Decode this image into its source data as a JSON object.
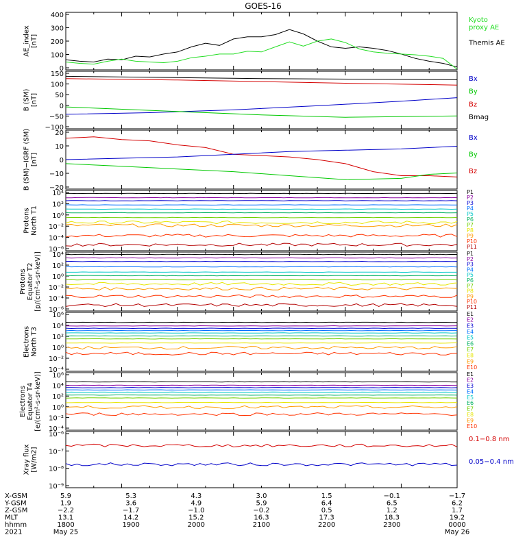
{
  "title": "GOES-16",
  "colors": {
    "black": "#000000",
    "red": "#d40000",
    "green": "#00c800",
    "blue": "#0000c8",
    "kyoto": "#22dd22",
    "ch": [
      "#000000",
      "#8a00a0",
      "#0000d0",
      "#0070ff",
      "#00c8c8",
      "#00b060",
      "#70d000",
      "#e6e600",
      "#ff9900",
      "#ff3300",
      "#b40000"
    ]
  },
  "chart_data": [
    {
      "id": "ae",
      "type": "line",
      "ylabel": "AE_index\n[nT]",
      "ylim": [
        0,
        400
      ],
      "yticks": [
        "400",
        "300",
        "200",
        "100",
        "0"
      ],
      "legend": [
        {
          "label": "Kyoto\nproxy AE",
          "color": "#22dd22"
        },
        {
          "label": "Themis AE",
          "color": "#000000"
        }
      ],
      "series": [
        {
          "name": "Themis AE",
          "color": "#000000",
          "points": [
            [
              0,
              70
            ],
            [
              0.5,
              60
            ],
            [
              1,
              55
            ],
            [
              1.5,
              75
            ],
            [
              2,
              70
            ],
            [
              2.5,
              95
            ],
            [
              3,
              90
            ],
            [
              3.5,
              110
            ],
            [
              4,
              125
            ],
            [
              4.5,
              160
            ],
            [
              5,
              185
            ],
            [
              5.5,
              170
            ],
            [
              6,
              215
            ],
            [
              6.5,
              230
            ],
            [
              7,
              230
            ],
            [
              7.5,
              245
            ],
            [
              8,
              280
            ],
            [
              8.5,
              250
            ],
            [
              9,
              200
            ],
            [
              9.5,
              160
            ],
            [
              10,
              150
            ],
            [
              10.5,
              160
            ],
            [
              11,
              150
            ],
            [
              11.5,
              135
            ],
            [
              12,
              110
            ],
            [
              12.5,
              80
            ],
            [
              13,
              60
            ],
            [
              13.5,
              45
            ],
            [
              14,
              20
            ]
          ]
        },
        {
          "name": "Kyoto proxy AE",
          "color": "#22dd22",
          "points": [
            [
              0,
              55
            ],
            [
              0.5,
              45
            ],
            [
              1,
              40
            ],
            [
              1.5,
              60
            ],
            [
              2,
              75
            ],
            [
              2.5,
              60
            ],
            [
              3,
              55
            ],
            [
              3.5,
              50
            ],
            [
              4,
              60
            ],
            [
              4.5,
              85
            ],
            [
              5,
              95
            ],
            [
              5.5,
              110
            ],
            [
              6,
              110
            ],
            [
              6.5,
              130
            ],
            [
              7,
              125
            ],
            [
              7.5,
              160
            ],
            [
              8,
              195
            ],
            [
              8.5,
              165
            ],
            [
              9,
              200
            ],
            [
              9.5,
              215
            ],
            [
              10,
              190
            ],
            [
              10.5,
              145
            ],
            [
              11,
              125
            ],
            [
              11.5,
              115
            ],
            [
              12,
              110
            ],
            [
              12.5,
              105
            ],
            [
              13,
              95
            ],
            [
              13.5,
              80
            ],
            [
              14,
              5
            ]
          ]
        }
      ]
    },
    {
      "id": "bsm",
      "type": "line",
      "ylabel": "B (SM)\n[nT]",
      "ylim": [
        -110,
        140
      ],
      "yticks": [
        "150",
        "100",
        "50",
        "0",
        "−50",
        "−100"
      ],
      "legend": [
        {
          "label": "Bx",
          "color": "#0000c8"
        },
        {
          "label": "By",
          "color": "#00c800"
        },
        {
          "label": "Bz",
          "color": "#d40000"
        },
        {
          "label": "Bmag",
          "color": "#000000"
        }
      ],
      "series": [
        {
          "name": "Bmag",
          "color": "#000000",
          "points": [
            [
              0,
              118
            ],
            [
              7,
              108
            ],
            [
              14,
              103
            ]
          ]
        },
        {
          "name": "Bz",
          "color": "#d40000",
          "points": [
            [
              0,
              108
            ],
            [
              4,
              102
            ],
            [
              7,
              95
            ],
            [
              10,
              88
            ],
            [
              14,
              80
            ]
          ]
        },
        {
          "name": "Bx",
          "color": "#0000c8",
          "points": [
            [
              0,
              -47
            ],
            [
              3,
              -40
            ],
            [
              6,
              -28
            ],
            [
              9,
              -10
            ],
            [
              12,
              10
            ],
            [
              14,
              25
            ]
          ]
        },
        {
          "name": "By",
          "color": "#00c800",
          "points": [
            [
              0,
              -15
            ],
            [
              3,
              -30
            ],
            [
              7,
              -50
            ],
            [
              10,
              -60
            ],
            [
              12,
              -57
            ],
            [
              14,
              -54
            ]
          ]
        }
      ]
    },
    {
      "id": "bigrf",
      "type": "line",
      "ylabel": "B (SM)−IGRF (SM)\n[nT]",
      "ylim": [
        -22,
        22
      ],
      "yticks": [
        "20",
        "10",
        "0",
        "−10",
        "−20"
      ],
      "legend": [
        {
          "label": "Bx",
          "color": "#0000c8"
        },
        {
          "label": "By",
          "color": "#00c800"
        },
        {
          "label": "Bz",
          "color": "#d40000"
        }
      ],
      "series": [
        {
          "name": "Bz",
          "color": "#d40000",
          "points": [
            [
              0,
              16
            ],
            [
              1,
              17
            ],
            [
              2,
              15
            ],
            [
              3,
              14
            ],
            [
              4,
              11
            ],
            [
              5,
              9
            ],
            [
              6,
              4
            ],
            [
              7,
              3
            ],
            [
              8,
              2
            ],
            [
              9,
              0
            ],
            [
              10,
              -3
            ],
            [
              11,
              -9
            ],
            [
              12,
              -12
            ],
            [
              13,
              -12
            ],
            [
              14,
              -13
            ]
          ]
        },
        {
          "name": "Bx",
          "color": "#0000c8",
          "points": [
            [
              0,
              0
            ],
            [
              2,
              1
            ],
            [
              4,
              2
            ],
            [
              6,
              4
            ],
            [
              8,
              6
            ],
            [
              10,
              7
            ],
            [
              12,
              8
            ],
            [
              14,
              10
            ]
          ]
        },
        {
          "name": "By",
          "color": "#00c800",
          "points": [
            [
              0,
              -3
            ],
            [
              2,
              -5
            ],
            [
              4,
              -7
            ],
            [
              6,
              -9
            ],
            [
              8,
              -12
            ],
            [
              10,
              -15
            ],
            [
              12,
              -14
            ],
            [
              13,
              -11
            ],
            [
              14,
              -10
            ]
          ]
        }
      ]
    },
    {
      "id": "pn",
      "type": "line",
      "ylabel": "Protons\nNorth T1",
      "log": true,
      "ylim": [
        -6,
        4
      ],
      "yticks": [
        "10⁴",
        "10²",
        "10⁰",
        "10⁻²",
        "10⁻⁴",
        "10⁻⁶"
      ],
      "legend": [
        "P1",
        "P2",
        "P3",
        "P4",
        "P5",
        "P6",
        "P7",
        "P8",
        "P9",
        "P10",
        "P11"
      ],
      "levels": [
        3.5,
        2.8,
        2.3,
        1.6,
        0.9,
        0.3,
        -0.5,
        -1.3,
        -1.8,
        -3.5,
        -5.0
      ]
    },
    {
      "id": "pe",
      "type": "line",
      "ylabel": "Protons\nEquator T2\n[p/(cm²-s-sr-keV)]",
      "log": true,
      "ylim": [
        -6,
        4
      ],
      "yticks": [
        "10⁴",
        "10²",
        "10⁰",
        "10⁻²",
        "10⁻⁴",
        "10⁻⁶"
      ],
      "legend": [
        "P1",
        "P2",
        "P3",
        "P4",
        "P5",
        "P6",
        "P7",
        "P8",
        "P9",
        "P10",
        "P11"
      ],
      "levels": [
        3.6,
        3.0,
        2.4,
        1.5,
        0.6,
        0.0,
        -0.7,
        -1.4,
        -2.2,
        -3.5,
        -5.0
      ]
    },
    {
      "id": "en",
      "type": "line",
      "ylabel": "Electrons\nNorth T3",
      "log": true,
      "ylim": [
        -4,
        6
      ],
      "yticks": [
        "10⁶",
        "10⁴",
        "10²",
        "10⁰",
        "10⁻²",
        "10⁻⁴"
      ],
      "legend": [
        "E1",
        "E2",
        "E3",
        "E4",
        "E5",
        "E6",
        "E7",
        "E8",
        "E9",
        "E10"
      ],
      "levels": [
        4.3,
        3.7,
        3.3,
        2.9,
        2.5,
        2.0,
        1.5,
        0.8,
        0.0,
        -1.0
      ]
    },
    {
      "id": "ee",
      "type": "line",
      "ylabel": "Electrons\nEquator T4\n[e/(cm²-s-sr-keV)]",
      "log": true,
      "ylim": [
        -4,
        6
      ],
      "yticks": [
        "10⁶",
        "10⁴",
        "10²",
        "10⁰",
        "10⁻²",
        "10⁻⁴"
      ],
      "legend": [
        "E1",
        "E2",
        "E3",
        "E4",
        "E5",
        "E6",
        "E7",
        "E8",
        "E9",
        "E10"
      ],
      "levels": [
        4.4,
        3.8,
        3.4,
        3.0,
        2.6,
        2.1,
        1.6,
        0.8,
        0.0,
        -1.2
      ]
    },
    {
      "id": "xray",
      "type": "line",
      "ylabel": "Xray flux\n[W/m2]",
      "log": true,
      "ylim": [
        -9,
        -6
      ],
      "yticks": [
        "10⁻⁶",
        "10⁻⁷",
        "10⁻⁸",
        "10⁻⁹"
      ],
      "legend": [
        {
          "label": "0.1−0.8 nm",
          "color": "#d40000"
        },
        {
          "label": "0.05−0.4 nm",
          "color": "#0000c8"
        }
      ],
      "levels": [
        -6.75,
        -7.75
      ]
    }
  ],
  "axis_info": {
    "rows": [
      {
        "label": "X-GSM",
        "values": [
          "5.9",
          "5.3",
          "4.3",
          "3.0",
          "1.5",
          "−0.1",
          "−1.7"
        ]
      },
      {
        "label": "Y-GSM",
        "values": [
          "1.9",
          "3.6",
          "4.9",
          "5.9",
          "6.4",
          "6.5",
          "6.2"
        ]
      },
      {
        "label": "Z-GSM",
        "values": [
          "−2.2",
          "−1.7",
          "−1.0",
          "−0.2",
          "0.5",
          "1.2",
          "1.7"
        ]
      },
      {
        "label": "MLT",
        "values": [
          "13.1",
          "14.2",
          "15.2",
          "16.3",
          "17.3",
          "18.3",
          "19.2"
        ]
      },
      {
        "label": "hhmm",
        "values": [
          "1800",
          "1900",
          "2000",
          "2100",
          "2200",
          "2300",
          "0000"
        ]
      },
      {
        "label": "2021",
        "values": [
          "May 25",
          "",
          "",
          "",
          "",
          "",
          "May 26"
        ]
      }
    ]
  }
}
